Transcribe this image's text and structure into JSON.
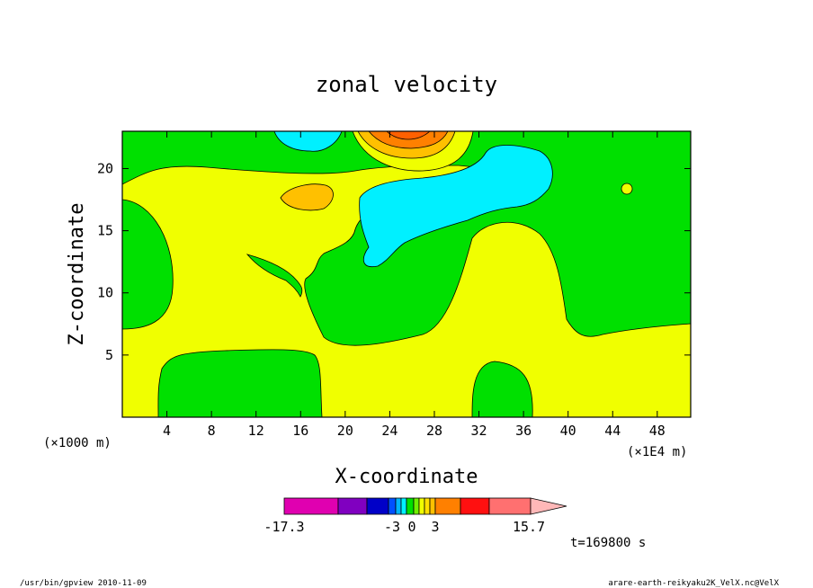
{
  "chart_data": {
    "type": "heatmap",
    "title": "zonal velocity",
    "xlabel": "X-coordinate",
    "ylabel": "Z-coordinate",
    "x_unit_label": "(×1E4 m)",
    "y_unit_label": "(×1000 m)",
    "xlim": [
      0,
      51
    ],
    "ylim": [
      0,
      23
    ],
    "x_ticks": [
      4,
      8,
      12,
      16,
      20,
      24,
      28,
      32,
      36,
      40,
      44,
      48
    ],
    "y_ticks": [
      5,
      10,
      15,
      20
    ],
    "x_tick_labels": [
      "4",
      "8",
      "12",
      "16",
      "20",
      "24",
      "28",
      "32",
      "36",
      "40",
      "44",
      "48"
    ],
    "y_tick_labels": [
      "5",
      "10",
      "15",
      "20"
    ],
    "grid": false,
    "colorbar": {
      "levels": [
        -17.3,
        -3,
        0,
        3,
        15.7
      ],
      "tick_labels": [
        "-17.3",
        "-3",
        "0",
        "3",
        "15.7"
      ],
      "colors": [
        "#e000b0",
        "#8000c0",
        "#0000c8",
        "#0050ff",
        "#00b4ff",
        "#00f0ff",
        "#00e000",
        "#70f000",
        "#f0ff00",
        "#ffe000",
        "#ffc000",
        "#ff8000",
        "#ff1010",
        "#ff7070",
        "#ffb8b8"
      ]
    },
    "regions": [
      {
        "level": "-3 to 0",
        "color": "#00f0ff",
        "description": "negative zonal velocity near upper center and top-left"
      },
      {
        "level": "0 to 3",
        "color": "#00e000",
        "description": "weak positive velocity"
      },
      {
        "level": "3 to 6",
        "color": "#f0ff00",
        "description": "moderate positive velocity across mid-levels"
      },
      {
        "level": "6 to 15.7",
        "color": "#ff8000",
        "description": "maximum near x=24, top of domain"
      }
    ],
    "time_label": "t=169800 s"
  },
  "footer": {
    "left": "/usr/bin/gpview   2010-11-09",
    "right": "arare-earth-reikyaku2K_VelX.nc@VelX"
  }
}
